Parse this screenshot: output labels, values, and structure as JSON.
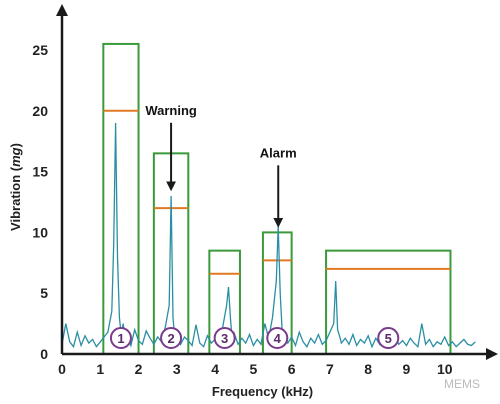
{
  "chart_data": {
    "type": "line",
    "xlabel": "Frequency (kHz)",
    "ylabel": "Vibration (mg)",
    "xlim": [
      0,
      11
    ],
    "ylim": [
      0,
      27
    ],
    "x_ticks": [
      "0",
      "1",
      "2",
      "3",
      "4",
      "5",
      "6",
      "7",
      "8",
      "9",
      "10"
    ],
    "y_ticks": [
      "0",
      "5",
      "10",
      "15",
      "20",
      "25"
    ],
    "grid": false,
    "colors": {
      "spectrum": "#2a8fa3",
      "band_box": "#3a9a3a",
      "warning_line": "#e07a22",
      "band_marker": "#7a3b8c",
      "axis": "#1a1a1a"
    },
    "series": [
      {
        "values_x": [
          0.0,
          0.1,
          0.2,
          0.3,
          0.4,
          0.5,
          0.6,
          0.7,
          0.8,
          0.9,
          1.0,
          1.1,
          1.2,
          1.3,
          1.35,
          1.4,
          1.45,
          1.5,
          1.55,
          1.6,
          1.65,
          1.7,
          1.8,
          1.9,
          2.0,
          2.1,
          2.2,
          2.3,
          2.4,
          2.5,
          2.6,
          2.7,
          2.8,
          2.85,
          2.9,
          2.95,
          3.0,
          3.1,
          3.2,
          3.3,
          3.4,
          3.5,
          3.6,
          3.7,
          3.8,
          3.9,
          4.0,
          4.1,
          4.2,
          4.3,
          4.35,
          4.4,
          4.45,
          4.5,
          4.6,
          4.7,
          4.8,
          4.9,
          5.0,
          5.1,
          5.2,
          5.3,
          5.4,
          5.5,
          5.6,
          5.65,
          5.7,
          5.75,
          5.8,
          5.9,
          6.0,
          6.1,
          6.2,
          6.3,
          6.4,
          6.5,
          6.6,
          6.7,
          6.8,
          6.9,
          7.0,
          7.1,
          7.15,
          7.2,
          7.25,
          7.3,
          7.4,
          7.5,
          7.6,
          7.7,
          7.8,
          7.9,
          8.0,
          8.1,
          8.2,
          8.3,
          8.4,
          8.5,
          8.6,
          8.7,
          8.8,
          8.9,
          9.0,
          9.1,
          9.2,
          9.3,
          9.4,
          9.5,
          9.6,
          9.7,
          9.8,
          9.9,
          10.0,
          10.1,
          10.2,
          10.3,
          10.4,
          10.5,
          10.6,
          10.7,
          10.8
        ],
        "values_y": [
          0.8,
          2.5,
          1.0,
          0.6,
          1.8,
          0.7,
          1.5,
          0.9,
          1.2,
          0.6,
          1.0,
          1.4,
          1.8,
          3.5,
          9.0,
          19.0,
          8.0,
          3.0,
          1.5,
          2.5,
          1.0,
          1.6,
          0.7,
          2.0,
          1.1,
          0.8,
          1.9,
          1.3,
          0.8,
          1.4,
          1.0,
          2.2,
          4.0,
          13.0,
          3.0,
          1.2,
          1.8,
          0.8,
          1.4,
          1.1,
          0.7,
          2.4,
          0.9,
          0.6,
          1.5,
          0.9,
          1.2,
          0.7,
          2.2,
          4.0,
          5.5,
          3.0,
          1.0,
          1.7,
          0.8,
          1.3,
          0.9,
          1.6,
          0.7,
          1.2,
          0.8,
          2.5,
          1.3,
          3.0,
          6.0,
          10.5,
          5.0,
          2.0,
          1.5,
          0.9,
          1.4,
          0.7,
          1.8,
          1.0,
          0.6,
          1.3,
          0.9,
          1.6,
          0.8,
          1.1,
          1.8,
          2.5,
          6.0,
          2.0,
          1.5,
          0.9,
          1.3,
          0.8,
          1.6,
          0.7,
          1.2,
          0.9,
          1.5,
          0.6,
          1.3,
          0.8,
          2.0,
          0.9,
          0.6,
          1.4,
          0.8,
          1.1,
          0.7,
          1.3,
          0.9,
          0.6,
          2.5,
          0.8,
          1.2,
          0.6,
          1.0,
          0.8,
          1.4,
          0.7,
          1.0,
          0.6,
          0.9,
          1.2,
          0.8,
          0.7,
          1.0
        ]
      }
    ],
    "bands": [
      {
        "label": "1",
        "x0": 1.08,
        "x1": 2.0,
        "alarm": 25.5,
        "warning": 20.0
      },
      {
        "label": "2",
        "x0": 2.4,
        "x1": 3.3,
        "alarm": 16.5,
        "warning": 12.0
      },
      {
        "label": "3",
        "x0": 3.85,
        "x1": 4.65,
        "alarm": 8.5,
        "warning": 6.6
      },
      {
        "label": "4",
        "x0": 5.25,
        "x1": 6.0,
        "alarm": 10.0,
        "warning": 7.7
      },
      {
        "label": "5",
        "x0": 6.9,
        "x1": 10.15,
        "alarm": 8.5,
        "warning": 7.0
      }
    ],
    "annotations": [
      {
        "text": "Warning",
        "x": 2.85,
        "y_text": 20.0,
        "y_arrow_end": 13.3
      },
      {
        "text": "Alarm",
        "x": 5.65,
        "y_text": 16.5,
        "y_arrow_end": 10.3
      }
    ],
    "watermark": "MEMS"
  }
}
